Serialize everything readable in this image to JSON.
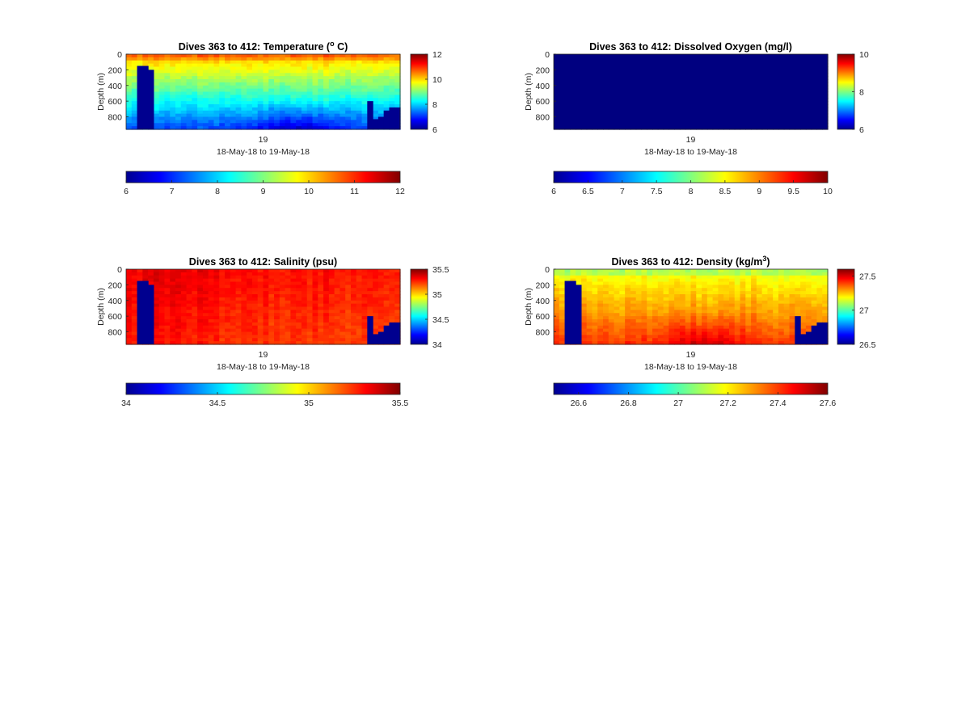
{
  "figure": {
    "background": "#ffffff"
  },
  "chart_data": [
    {
      "type": "heatmap",
      "title_main": "Dives 363 to 412: Temperature (",
      "title_sup": "o",
      "title_end": " C)",
      "ylabel": "Depth (m)",
      "xtick": "19",
      "xlabel": "18-May-18 to 19-May-18",
      "ylim": [
        0,
        960
      ],
      "yticks": [
        "0",
        "200",
        "400",
        "600",
        "800"
      ],
      "clim": [
        6,
        12
      ],
      "cbar_ticks": [
        "6",
        "8",
        "10",
        "12"
      ],
      "hbar_ticks": [
        "6",
        "7",
        "8",
        "9",
        "10",
        "11",
        "12"
      ],
      "field": "temperature",
      "missing_left": [
        {
          "dive": 2,
          "top_m": 150
        },
        {
          "dive": 3,
          "top_m": 150
        },
        {
          "dive": 4,
          "top_m": 200
        }
      ],
      "missing_right": [
        {
          "dive": 44,
          "top_m": 600
        },
        {
          "dive": 45,
          "top_m": 830
        },
        {
          "dive": 46,
          "top_m": 800
        },
        {
          "dive": 47,
          "top_m": 720
        },
        {
          "dive": 48,
          "top_m": 680
        },
        {
          "dive": 49,
          "top_m": 680
        }
      ]
    },
    {
      "type": "heatmap",
      "title_main": "Dives 363 to 412: Dissolved Oxygen (mg/l)",
      "title_sup": "",
      "title_end": "",
      "ylabel": "Depth (m)",
      "xtick": "19",
      "xlabel": "18-May-18 to 19-May-18",
      "ylim": [
        0,
        960
      ],
      "yticks": [
        "0",
        "200",
        "400",
        "600",
        "800"
      ],
      "clim": [
        6,
        10
      ],
      "cbar_ticks": [
        "6",
        "8",
        "10"
      ],
      "hbar_ticks": [
        "6",
        "6.5",
        "7",
        "7.5",
        "8",
        "8.5",
        "9",
        "9.5",
        "10"
      ],
      "field": "oxygen",
      "missing_left": [],
      "missing_right": []
    },
    {
      "type": "heatmap",
      "title_main": "Dives 363 to 412: Salinity (psu)",
      "title_sup": "",
      "title_end": "",
      "ylabel": "Depth (m)",
      "xtick": "19",
      "xlabel": "18-May-18 to 19-May-18",
      "ylim": [
        0,
        960
      ],
      "yticks": [
        "0",
        "200",
        "400",
        "600",
        "800"
      ],
      "clim": [
        34,
        35.5
      ],
      "cbar_ticks": [
        "34",
        "34.5",
        "35",
        "35.5"
      ],
      "hbar_ticks": [
        "34",
        "34.5",
        "35",
        "35.5"
      ],
      "field": "salinity",
      "missing_left": [
        {
          "dive": 2,
          "top_m": 150
        },
        {
          "dive": 3,
          "top_m": 150
        },
        {
          "dive": 4,
          "top_m": 200
        }
      ],
      "missing_right": [
        {
          "dive": 44,
          "top_m": 600
        },
        {
          "dive": 45,
          "top_m": 830
        },
        {
          "dive": 46,
          "top_m": 800
        },
        {
          "dive": 47,
          "top_m": 720
        },
        {
          "dive": 48,
          "top_m": 680
        },
        {
          "dive": 49,
          "top_m": 680
        }
      ]
    },
    {
      "type": "heatmap",
      "title_main": "Dives 363 to 412: Density (kg/m",
      "title_sup": "3",
      "title_end": ")",
      "ylabel": "Depth (m)",
      "xtick": "19",
      "xlabel": "18-May-18 to 19-May-18",
      "ylim": [
        0,
        960
      ],
      "yticks": [
        "0",
        "200",
        "400",
        "600",
        "800"
      ],
      "clim": [
        26.5,
        27.6
      ],
      "cbar_ticks": [
        "26.5",
        "27",
        "27.5"
      ],
      "hbar_ticks": [
        "26.6",
        "26.8",
        "27",
        "27.2",
        "27.4",
        "27.6"
      ],
      "field": "density",
      "missing_left": [
        {
          "dive": 2,
          "top_m": 150
        },
        {
          "dive": 3,
          "top_m": 150
        },
        {
          "dive": 4,
          "top_m": 200
        }
      ],
      "missing_right": [
        {
          "dive": 44,
          "top_m": 600
        },
        {
          "dive": 45,
          "top_m": 830
        },
        {
          "dive": 46,
          "top_m": 800
        },
        {
          "dive": 47,
          "top_m": 720
        },
        {
          "dive": 48,
          "top_m": 680
        },
        {
          "dive": 49,
          "top_m": 680
        }
      ]
    }
  ],
  "colors": {
    "missing": "#00008f",
    "axis": "#262626"
  }
}
